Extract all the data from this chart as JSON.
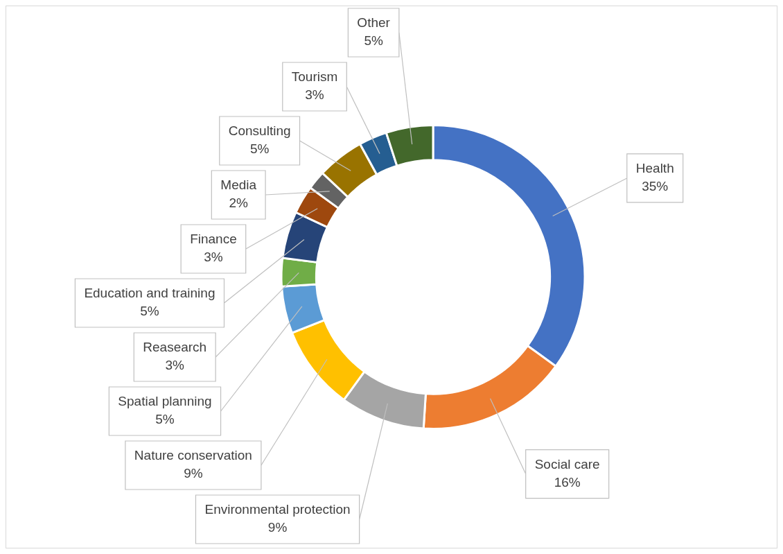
{
  "chart_data": {
    "type": "donut",
    "categories": [
      "Health",
      "Social care",
      "Environmental protection",
      "Nature conservation",
      "Spatial planning",
      "Reasearch",
      "Education and training",
      "Finance",
      "Media",
      "Consulting",
      "Tourism",
      "Other"
    ],
    "values": [
      35,
      16,
      9,
      9,
      5,
      3,
      5,
      3,
      2,
      5,
      3,
      5
    ],
    "colors": [
      "#4472c4",
      "#ed7d31",
      "#a5a5a5",
      "#ffc000",
      "#5b9bd5",
      "#70ad47",
      "#264478",
      "#9e480e",
      "#636363",
      "#997300",
      "#255e91",
      "#43682b"
    ],
    "value_labels": [
      "35%",
      "16%",
      "9%",
      "9%",
      "5%",
      "3%",
      "5%",
      "3%",
      "2%",
      "5%",
      "3%",
      "5%"
    ],
    "legend": false
  }
}
